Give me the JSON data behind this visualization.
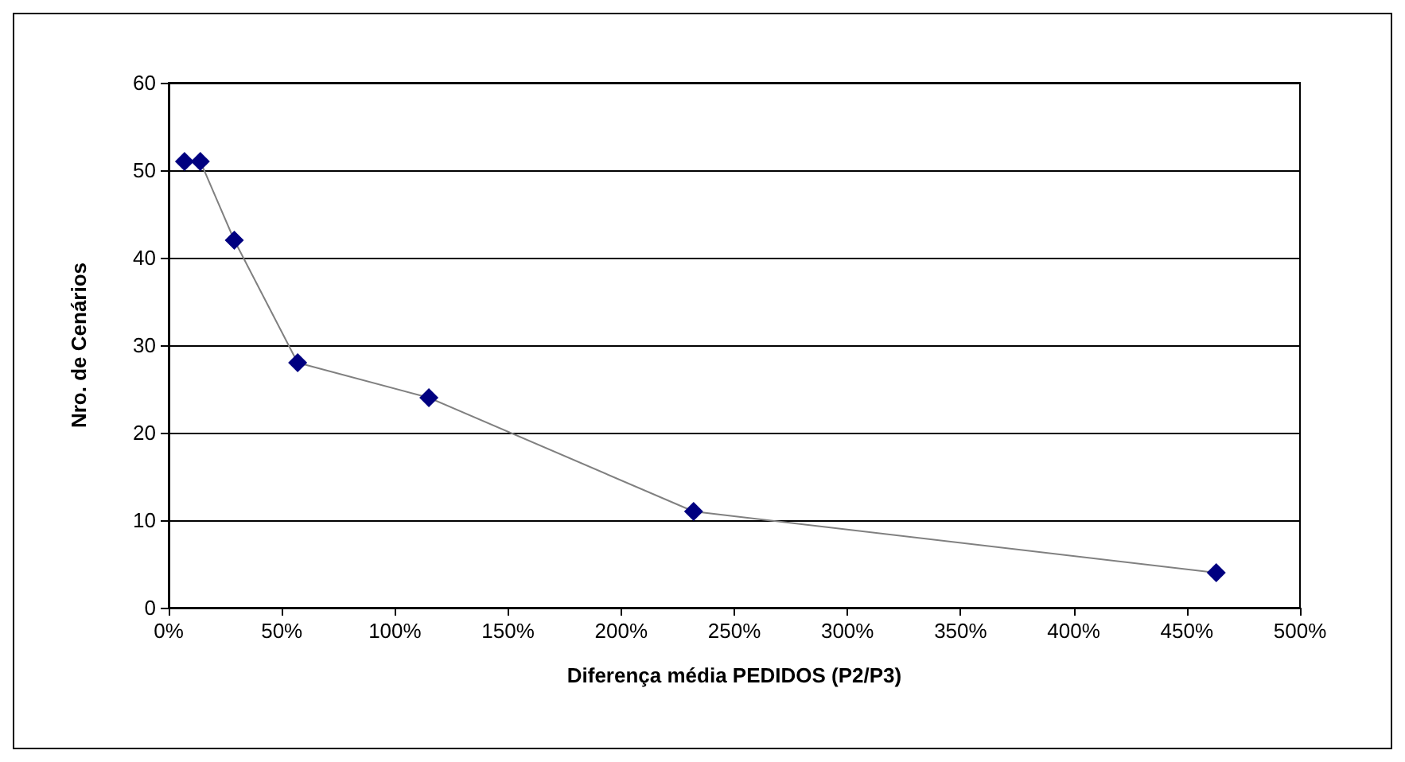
{
  "chart_data": {
    "type": "line",
    "xlabel": "Diferença média PEDIDOS (P2/P3)",
    "ylabel": "Nro. de Cenários",
    "x": [
      7,
      14,
      29,
      57,
      115,
      232,
      463
    ],
    "series": [
      {
        "color": "#000080",
        "values": [
          51,
          51,
          42,
          28,
          24,
          11,
          4
        ]
      }
    ],
    "xlim": [
      0,
      500
    ],
    "xticks": [
      {
        "value": 0,
        "label": "0%"
      },
      {
        "value": 50,
        "label": "50%"
      },
      {
        "value": 100,
        "label": "100%"
      },
      {
        "value": 150,
        "label": "150%"
      },
      {
        "value": 200,
        "label": "200%"
      },
      {
        "value": 250,
        "label": "250%"
      },
      {
        "value": 300,
        "label": "300%"
      },
      {
        "value": 350,
        "label": "350%"
      },
      {
        "value": 400,
        "label": "400%"
      },
      {
        "value": 450,
        "label": "450%"
      },
      {
        "value": 500,
        "label": "500%"
      }
    ],
    "ylim": [
      0,
      60
    ],
    "yticks": [
      0,
      10,
      20,
      30,
      40,
      50,
      60
    ],
    "grid": "y",
    "marker": "diamond",
    "line_style": "solid"
  }
}
